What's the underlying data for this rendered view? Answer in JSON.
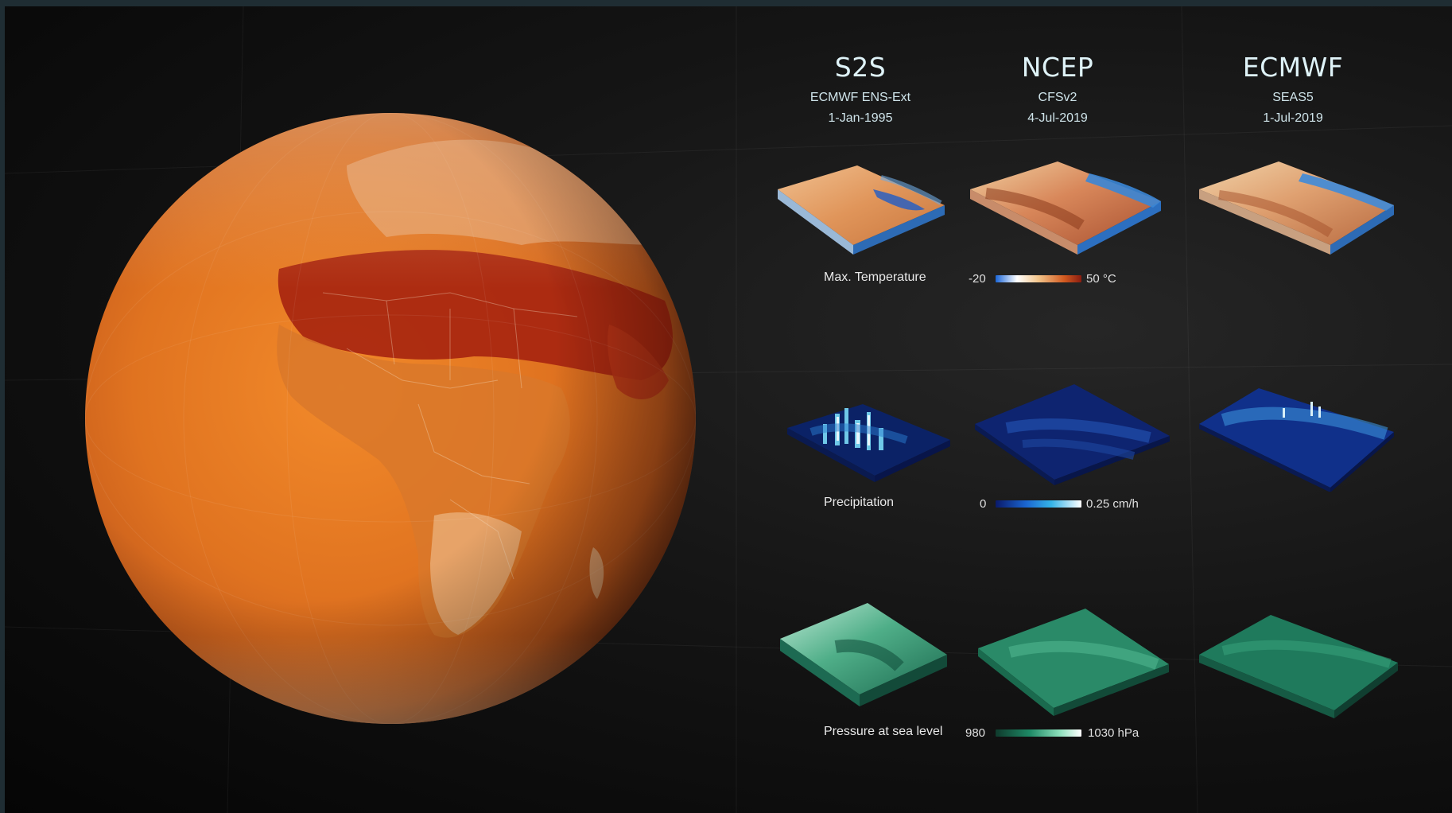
{
  "columns": [
    {
      "source": "S2S",
      "model": "ECMWF ENS-Ext",
      "date": "1-Jan-1995"
    },
    {
      "source": "NCEP",
      "model": "CFSv2",
      "date": "4-Jul-2019"
    },
    {
      "source": "ECMWF",
      "model": "SEAS5",
      "date": "1-Jul-2019"
    }
  ],
  "variables": [
    {
      "label": "Max. Temperature",
      "scale_min": "-20",
      "scale_max": "50 °C",
      "colors": [
        "#1a66d9",
        "#ffffff",
        "#f2c48a",
        "#d25a20",
        "#8a1c10"
      ]
    },
    {
      "label": "Precipitation",
      "scale_min": "0",
      "scale_max": "0.25 cm/h",
      "colors": [
        "#0a1a6a",
        "#1a64d0",
        "#35b4e8",
        "#ffffff"
      ]
    },
    {
      "label": "Pressure at sea level",
      "scale_min": "980",
      "scale_max": "1030 hPa",
      "colors": [
        "#0f3a2c",
        "#1e8a66",
        "#8de0bc",
        "#ffffff"
      ]
    }
  ],
  "globe_colors": {
    "ocean": "#e57a22",
    "hot": "#a8220e",
    "land_light": "#f0d8b8"
  }
}
